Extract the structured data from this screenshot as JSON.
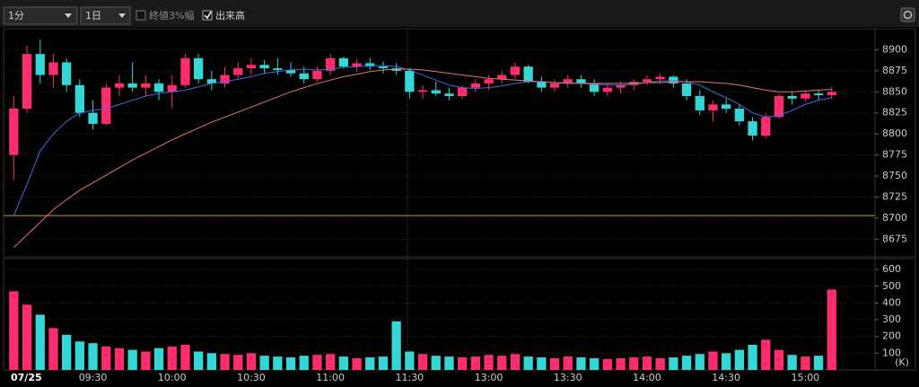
{
  "toolbar": {
    "dropdowns": [
      "1分",
      "1日"
    ],
    "checkboxes": [
      {
        "label": "終値3%幅",
        "checked": false
      },
      {
        "label": "出来高",
        "checked": true
      }
    ]
  },
  "chart_data": [
    {
      "type": "candlestick",
      "up_color": "#ff2d6e",
      "down_color": "#35d6d6",
      "ylim": [
        8654,
        8925
      ],
      "yticks": [
        8675,
        8700,
        8725,
        8750,
        8775,
        8800,
        8825,
        8850,
        8875,
        8900
      ],
      "grid": true,
      "open": [
        8775,
        8830,
        8895,
        8870,
        8885,
        8858,
        8825,
        8812,
        8855,
        8860,
        8855,
        8860,
        8850,
        8858,
        8890,
        8865,
        8860,
        8870,
        8878,
        8882,
        8878,
        8876,
        8872,
        8865,
        8875,
        8890,
        8880,
        8884,
        8880,
        8878,
        8875,
        8850,
        8852,
        8848,
        8845,
        8855,
        8860,
        8865,
        8870,
        8880,
        8862,
        8855,
        8860,
        8865,
        8860,
        8850,
        8855,
        8858,
        8862,
        8865,
        8868,
        8860,
        8845,
        8828,
        8835,
        8830,
        8815,
        8798,
        8820,
        8845,
        8842,
        8848,
        8846
      ],
      "high": [
        8845,
        8905,
        8912,
        8895,
        8890,
        8865,
        8840,
        8860,
        8870,
        8885,
        8870,
        8865,
        8870,
        8895,
        8895,
        8875,
        8880,
        8885,
        8890,
        8888,
        8890,
        8885,
        8880,
        8880,
        8895,
        8892,
        8888,
        8890,
        8886,
        8884,
        8878,
        8858,
        8862,
        8855,
        8858,
        8865,
        8870,
        8875,
        8885,
        8882,
        8868,
        8865,
        8870,
        8870,
        8865,
        8860,
        8862,
        8865,
        8870,
        8872,
        8870,
        8865,
        8852,
        8840,
        8842,
        8835,
        8820,
        8825,
        8848,
        8850,
        8852,
        8852,
        8856
      ],
      "low": [
        8745,
        8825,
        8860,
        8855,
        8850,
        8820,
        8805,
        8810,
        8845,
        8850,
        8845,
        8840,
        8830,
        8855,
        8860,
        8852,
        8855,
        8865,
        8870,
        8872,
        8870,
        8868,
        8860,
        8862,
        8870,
        8878,
        8874,
        8876,
        8872,
        8870,
        8842,
        8842,
        8845,
        8840,
        8842,
        8850,
        8852,
        8860,
        8865,
        8860,
        8850,
        8850,
        8855,
        8855,
        8845,
        8845,
        8848,
        8852,
        8858,
        8860,
        8855,
        8840,
        8822,
        8815,
        8825,
        8810,
        8792,
        8795,
        8818,
        8835,
        8838,
        8840,
        8842
      ],
      "close": [
        8830,
        8895,
        8870,
        8885,
        8858,
        8825,
        8812,
        8855,
        8860,
        8855,
        8860,
        8850,
        8858,
        8890,
        8865,
        8860,
        8870,
        8878,
        8882,
        8878,
        8876,
        8872,
        8865,
        8875,
        8890,
        8880,
        8884,
        8880,
        8878,
        8875,
        8850,
        8852,
        8848,
        8845,
        8855,
        8860,
        8865,
        8870,
        8880,
        8862,
        8855,
        8860,
        8865,
        8860,
        8850,
        8855,
        8858,
        8862,
        8865,
        8868,
        8860,
        8845,
        8828,
        8835,
        8830,
        8815,
        8798,
        8820,
        8845,
        8842,
        8848,
        8846,
        8850
      ],
      "lines": [
        {
          "color": "#3f6fe0",
          "values": [
            8703,
            8740,
            8780,
            8800,
            8815,
            8825,
            8828,
            8830,
            8835,
            8840,
            8845,
            8848,
            8850,
            8852,
            8856,
            8860,
            8862,
            8865,
            8868,
            8872,
            8874,
            8876,
            8877,
            8876,
            8877,
            8879,
            8880,
            8881,
            8881,
            8880,
            8876,
            8870,
            8864,
            8858,
            8855,
            8854,
            8855,
            8857,
            8860,
            8862,
            8862,
            8861,
            8861,
            8860,
            8859,
            8858,
            8858,
            8859,
            8861,
            8863,
            8863,
            8862,
            8858,
            8850,
            8843,
            8835,
            8825,
            8820,
            8822,
            8828,
            8835,
            8840,
            8843
          ]
        },
        {
          "color": "#e07a6a",
          "values": [
            8665,
            8680,
            8695,
            8710,
            8722,
            8733,
            8742,
            8751,
            8760,
            8769,
            8777,
            8785,
            8793,
            8800,
            8807,
            8814,
            8820,
            8826,
            8832,
            8838,
            8844,
            8850,
            8855,
            8860,
            8864,
            8868,
            8871,
            8874,
            8876,
            8877,
            8877,
            8876,
            8874,
            8872,
            8870,
            8868,
            8866,
            8865,
            8864,
            8863,
            8862,
            8861,
            8860,
            8860,
            8860,
            8860,
            8860,
            8860,
            8861,
            8861,
            8862,
            8862,
            8862,
            8861,
            8860,
            8858,
            8855,
            8852,
            8850,
            8850,
            8851,
            8852,
            8853
          ]
        }
      ],
      "hline": {
        "value": 8703,
        "color": "#c89a3a"
      }
    },
    {
      "type": "volume",
      "unit_label": "(K)",
      "ylim": [
        0,
        665
      ],
      "yticks": [
        100,
        200,
        300,
        400,
        500,
        600
      ],
      "grid": true,
      "categories": [
        "07/25",
        null,
        null,
        null,
        null,
        null,
        "09:30",
        null,
        null,
        null,
        null,
        null,
        "10:00",
        null,
        null,
        null,
        null,
        null,
        "10:30",
        null,
        null,
        null,
        null,
        null,
        "11:00",
        null,
        null,
        null,
        null,
        null,
        "11:30",
        null,
        null,
        null,
        null,
        null,
        "13:00",
        null,
        null,
        null,
        null,
        null,
        "13:30",
        null,
        null,
        null,
        null,
        null,
        "14:00",
        null,
        null,
        null,
        null,
        null,
        "14:30",
        null,
        null,
        null,
        null,
        null,
        "15:00",
        null,
        null
      ],
      "values": [
        470,
        390,
        330,
        250,
        210,
        170,
        160,
        140,
        130,
        120,
        110,
        130,
        140,
        150,
        110,
        100,
        95,
        90,
        100,
        85,
        80,
        75,
        85,
        90,
        95,
        80,
        70,
        75,
        80,
        290,
        110,
        95,
        85,
        80,
        75,
        80,
        90,
        85,
        95,
        80,
        75,
        70,
        80,
        75,
        70,
        65,
        70,
        75,
        80,
        70,
        75,
        85,
        95,
        110,
        100,
        120,
        150,
        180,
        120,
        90,
        80,
        85,
        480
      ]
    }
  ]
}
